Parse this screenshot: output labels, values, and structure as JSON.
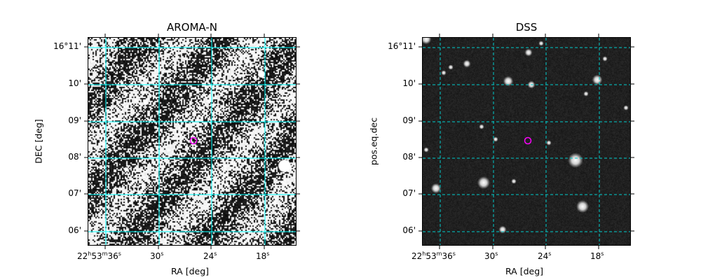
{
  "panels": [
    {
      "title": "AROMA-N",
      "xlabel": "RA [deg]",
      "ylabel": "DEC [deg]",
      "image": "noisy-radio-map-with-diagonal-stripes",
      "xticks": [
        {
          "label": "22h53m36s"
        },
        {
          "label": "30s"
        },
        {
          "label": "24s"
        },
        {
          "label": "18s"
        }
      ],
      "yticks": [
        "16°11'",
        "10'",
        "09'",
        "08'",
        "07'",
        "06'"
      ],
      "marker": "magenta-circle",
      "grid_color": "#00ffff"
    },
    {
      "title": "DSS",
      "xlabel": "RA [deg]",
      "ylabel": "pos.eq.dec",
      "image": "optical-star-field",
      "xticks": [
        {
          "label": "22h53m36s"
        },
        {
          "label": "30s"
        },
        {
          "label": "24s"
        },
        {
          "label": "18s"
        }
      ],
      "yticks": [
        "16°11'",
        "10'",
        "09'",
        "08'",
        "07'",
        "06'"
      ],
      "marker": "magenta-circle",
      "grid_color": "#00ffff"
    }
  ],
  "colors": {
    "marker": "#ff00ff",
    "grid": "#00ffff"
  }
}
